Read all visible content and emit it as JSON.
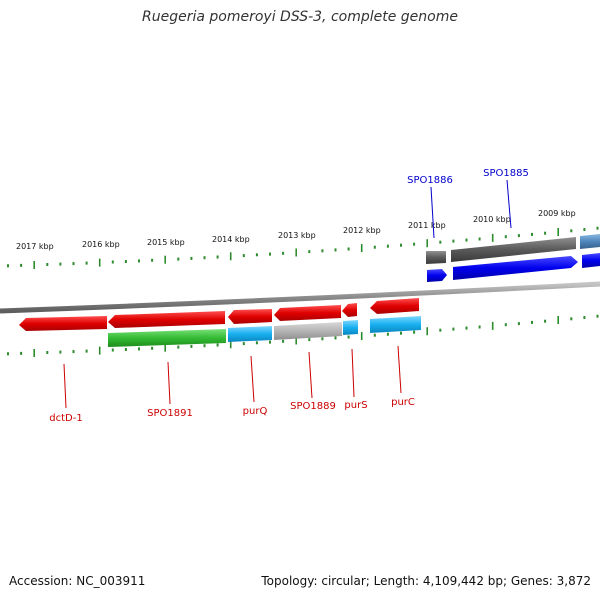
{
  "title": "Ruegeria pomeroyi DSS-3, complete genome",
  "footer": {
    "accession": "Accession: NC_003911",
    "summary": "Topology: circular; Length: 4,109,442 bp; Genes: 3,872"
  },
  "colors": {
    "backbone": "#8c8c8c",
    "ticks": "#2e8b2e",
    "forward_label": "#0000cc",
    "reverse_label": "#cc0000"
  },
  "kbp_labels": [
    "2017 kbp",
    "2016 kbp",
    "2015 kbp",
    "2014 kbp",
    "2013 kbp",
    "2012 kbp",
    "2011 kbp",
    "2010 kbp",
    "2009 kbp"
  ],
  "gene_labels": {
    "forward": [
      "SPO1886",
      "SPO1885"
    ],
    "reverse": [
      "dctD-1",
      "SPO1891",
      "purQ",
      "SPO1889",
      "purS",
      "purC"
    ]
  }
}
